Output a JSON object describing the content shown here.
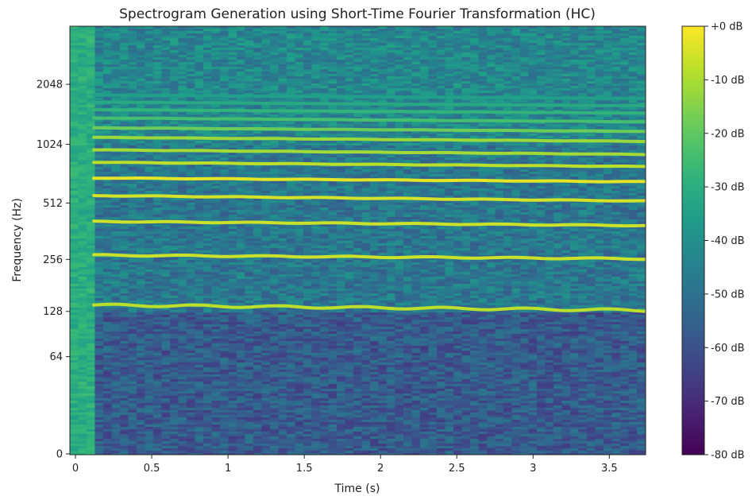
{
  "chart_data": {
    "type": "heatmap",
    "title": "Spectrogram Generation using Short-Time Fourier Transformation (HC)",
    "xlabel": "Time (s)",
    "ylabel": "Frequency (Hz)",
    "x_ticks": [
      {
        "value": 0,
        "label": "0"
      },
      {
        "value": 0.5,
        "label": "0.5"
      },
      {
        "value": 1,
        "label": "1"
      },
      {
        "value": 1.5,
        "label": "1.5"
      },
      {
        "value": 2,
        "label": "2"
      },
      {
        "value": 2.5,
        "label": "2.5"
      },
      {
        "value": 3,
        "label": "3"
      },
      {
        "value": 3.5,
        "label": "3.5"
      }
    ],
    "xlim": [
      -0.03,
      3.73
    ],
    "y_scale": "log2",
    "y_ticks": [
      {
        "value": 0,
        "label": "0"
      },
      {
        "value": 64,
        "label": "64"
      },
      {
        "value": 128,
        "label": "128"
      },
      {
        "value": 256,
        "label": "256"
      },
      {
        "value": 512,
        "label": "512"
      },
      {
        "value": 1024,
        "label": "1024"
      },
      {
        "value": 2048,
        "label": "2048"
      }
    ],
    "ylim": [
      0,
      4096
    ],
    "colormap": "viridis",
    "colorbar": {
      "range": [
        -80,
        0
      ],
      "ticks": [
        {
          "value": 0,
          "label": "+0 dB"
        },
        {
          "value": -10,
          "label": "-10 dB"
        },
        {
          "value": -20,
          "label": "-20 dB"
        },
        {
          "value": -30,
          "label": "-30 dB"
        },
        {
          "value": -40,
          "label": "-40 dB"
        },
        {
          "value": -50,
          "label": "-50 dB"
        },
        {
          "value": -60,
          "label": "-60 dB"
        },
        {
          "value": -70,
          "label": "-70 dB"
        },
        {
          "value": -80,
          "label": "-80 dB"
        }
      ]
    },
    "onset_time": 0.12,
    "harmonics": [
      {
        "freq_start": 140,
        "freq_end": 130,
        "level": -8
      },
      {
        "freq_start": 270,
        "freq_end": 258,
        "level": -6
      },
      {
        "freq_start": 410,
        "freq_end": 390,
        "level": -6
      },
      {
        "freq_start": 560,
        "freq_end": 525,
        "level": -5
      },
      {
        "freq_start": 690,
        "freq_end": 660,
        "level": -3
      },
      {
        "freq_start": 830,
        "freq_end": 790,
        "level": -8
      },
      {
        "freq_start": 960,
        "freq_end": 910,
        "level": -11
      },
      {
        "freq_start": 1110,
        "freq_end": 1060,
        "level": -12
      },
      {
        "freq_start": 1240,
        "freq_end": 1190,
        "level": -18
      },
      {
        "freq_start": 1390,
        "freq_end": 1330,
        "level": -24
      },
      {
        "freq_start": 1530,
        "freq_end": 1470,
        "level": -28
      },
      {
        "freq_start": 1670,
        "freq_end": 1600,
        "level": -32
      },
      {
        "freq_start": 1810,
        "freq_end": 1740,
        "level": -35
      }
    ],
    "noise_floor": {
      "below_128_hz": -57,
      "128_to_1024_hz": -48,
      "above_1024_hz": -43
    },
    "grid": false
  }
}
